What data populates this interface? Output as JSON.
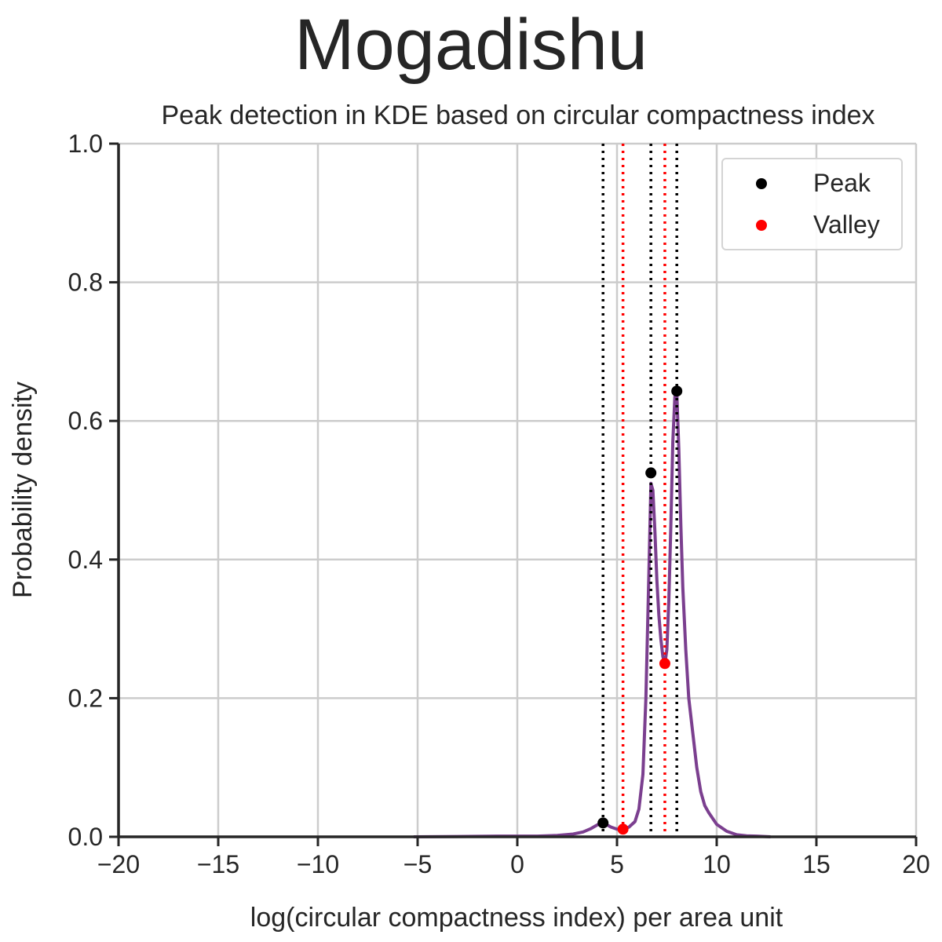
{
  "chart_data": {
    "type": "line",
    "suptitle": "Mogadishu",
    "title": "Peak detection in KDE based on circular compactness index",
    "xlabel": "log(circular compactness index) per area unit",
    "ylabel": "Probability density",
    "xlim": [
      -20,
      20
    ],
    "ylim": [
      0,
      1.0
    ],
    "x_ticks": [
      -20,
      -15,
      -10,
      -5,
      0,
      5,
      10,
      15,
      20
    ],
    "x_tick_labels": [
      "−20",
      "−15",
      "−10",
      "−5",
      "0",
      "5",
      "10",
      "15",
      "20"
    ],
    "y_ticks": [
      0,
      0.2,
      0.4,
      0.6,
      0.8,
      1.0
    ],
    "y_tick_labels": [
      "0.0",
      "0.2",
      "0.4",
      "0.6",
      "0.8",
      "1.0"
    ],
    "grid": true,
    "legend_position": "top-right",
    "series": [
      {
        "color": "#7b3f8f",
        "x": [
          -5.2,
          -3,
          -1,
          0,
          1,
          2,
          2.8,
          3.3,
          3.7,
          4.0,
          4.2,
          4.45,
          4.7,
          5.0,
          5.3,
          5.6,
          5.9,
          6.1,
          6.3,
          6.45,
          6.6,
          6.7,
          6.8,
          6.9,
          7.0,
          7.1,
          7.2,
          7.3,
          7.4,
          7.5,
          7.6,
          7.7,
          7.8,
          7.9,
          8.0,
          8.1,
          8.2,
          8.3,
          8.45,
          8.6,
          8.8,
          9.0,
          9.2,
          9.4,
          9.6,
          10.0,
          10.5,
          11.0,
          11.5,
          12.0,
          12.7
        ],
        "y": [
          0.0,
          0.0005,
          0.001,
          0.001,
          0.001,
          0.002,
          0.004,
          0.007,
          0.012,
          0.017,
          0.02,
          0.018,
          0.014,
          0.011,
          0.011,
          0.014,
          0.022,
          0.04,
          0.09,
          0.2,
          0.38,
          0.51,
          0.5,
          0.44,
          0.37,
          0.32,
          0.285,
          0.26,
          0.25,
          0.27,
          0.34,
          0.45,
          0.57,
          0.635,
          0.64,
          0.56,
          0.45,
          0.36,
          0.27,
          0.2,
          0.15,
          0.1,
          0.065,
          0.045,
          0.035,
          0.018,
          0.008,
          0.003,
          0.0015,
          0.001,
          0.0
        ]
      }
    ],
    "peaks": {
      "name": "Peak",
      "color": "#000000",
      "points": [
        {
          "x": 4.3,
          "y": 0.02
        },
        {
          "x": 6.7,
          "y": 0.525
        },
        {
          "x": 8.0,
          "y": 0.643
        }
      ]
    },
    "valleys": {
      "name": "Valley",
      "color": "#ff0000",
      "points": [
        {
          "x": 5.3,
          "y": 0.011
        },
        {
          "x": 7.4,
          "y": 0.25
        }
      ]
    }
  }
}
